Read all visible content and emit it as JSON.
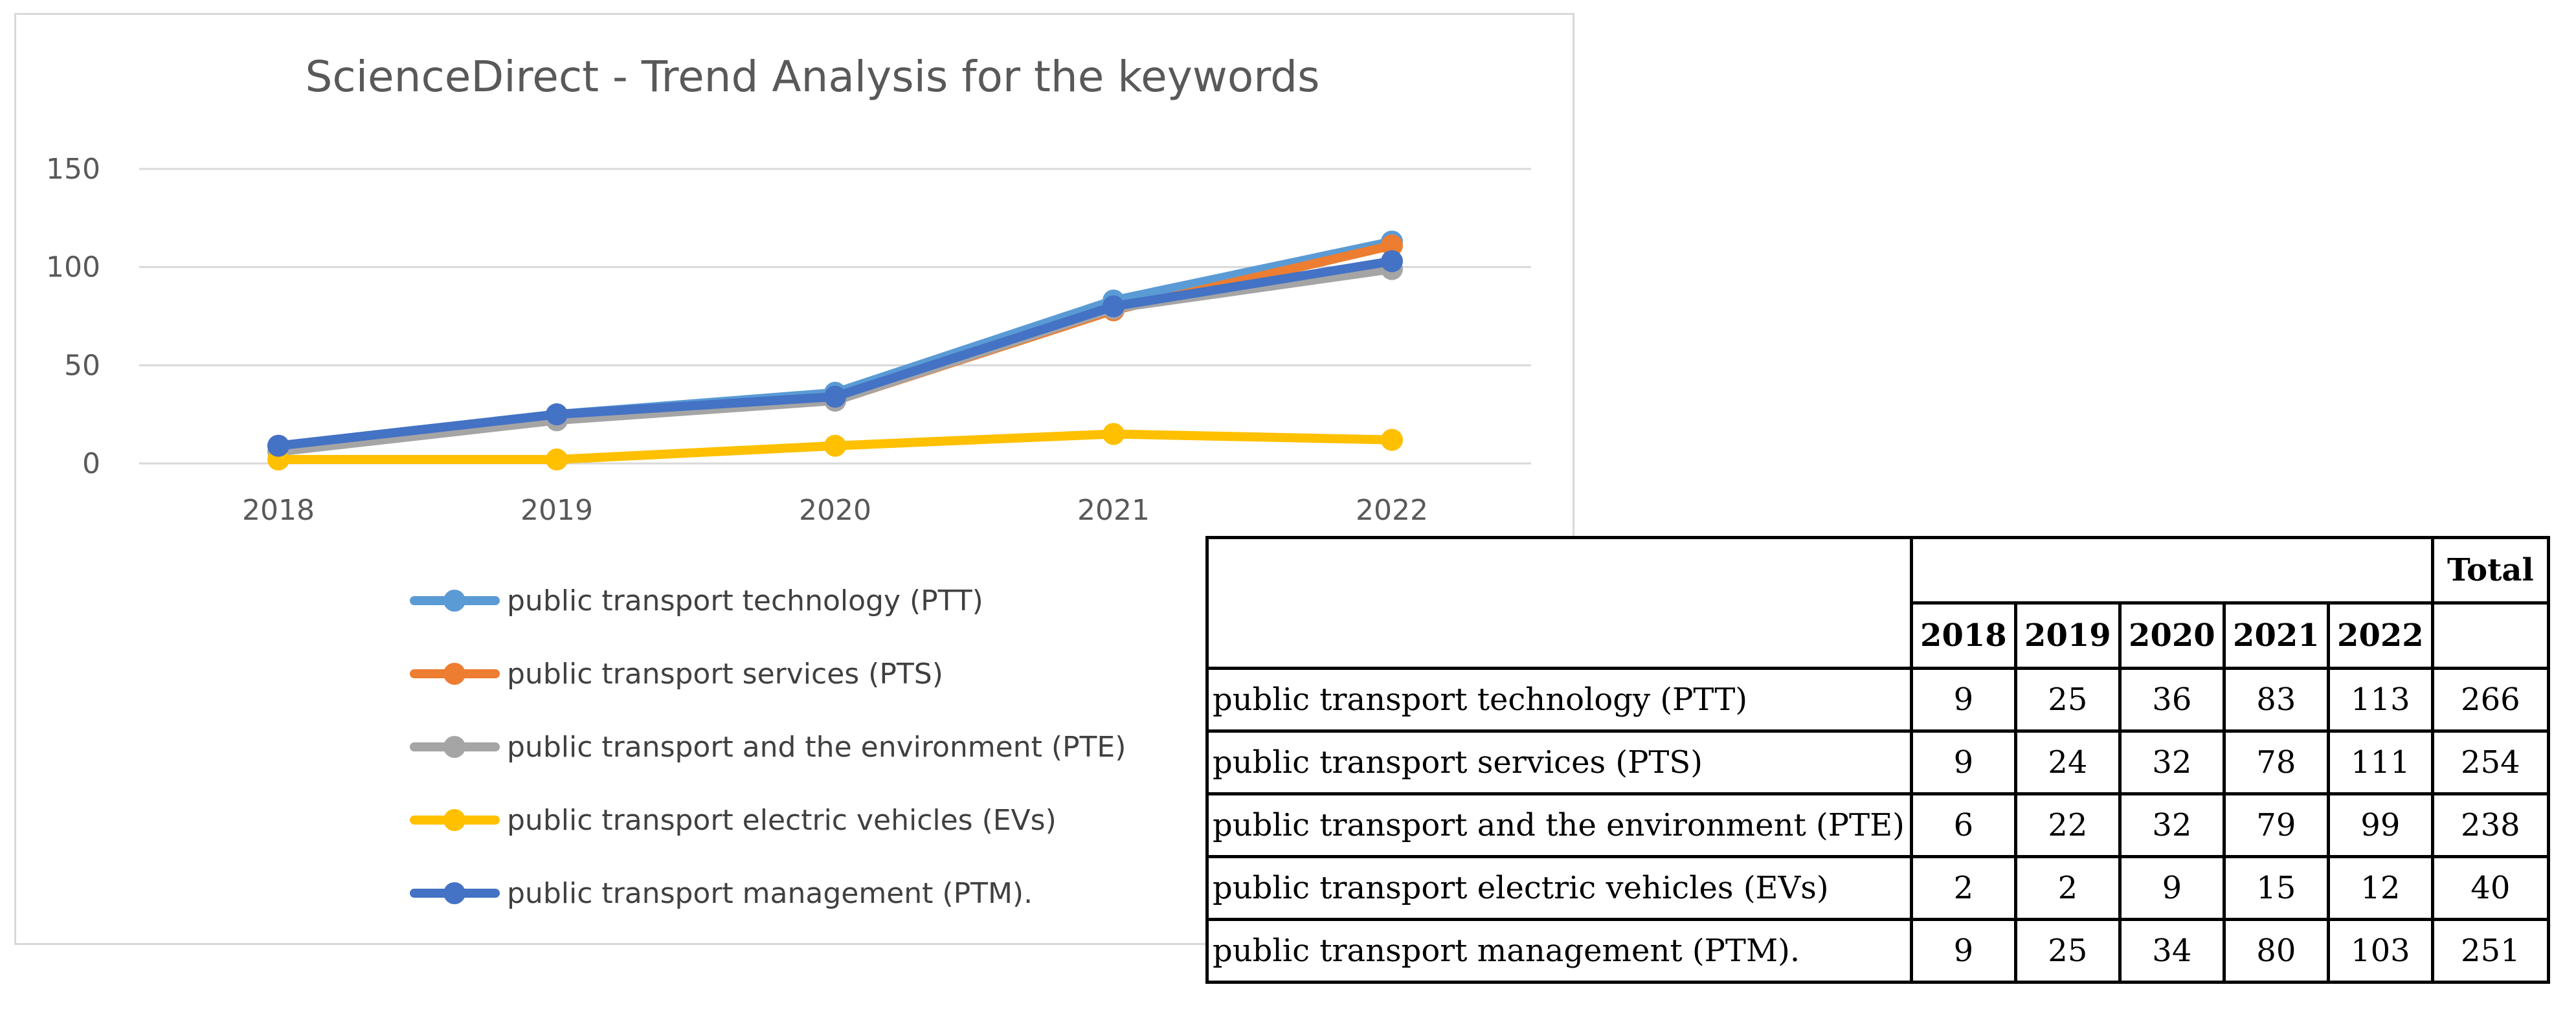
{
  "chart_data": {
    "type": "line",
    "title": "ScienceDirect - Trend Analysis for the keywords",
    "categories": [
      "2018",
      "2019",
      "2020",
      "2021",
      "2022"
    ],
    "ylim": [
      0,
      150
    ],
    "yticks": [
      "0",
      "50",
      "100",
      "150"
    ],
    "grid": true,
    "legend_position": "bottom",
    "series": [
      {
        "name": "public transport technology (PTT)",
        "color": "#5b9bd5",
        "values": [
          9,
          25,
          36,
          83,
          113
        ]
      },
      {
        "name": "public transport services (PTS)",
        "color": "#ed7d31",
        "values": [
          9,
          24,
          32,
          78,
          111
        ]
      },
      {
        "name": "public transport and the environment (PTE)",
        "color": "#a5a5a5",
        "values": [
          6,
          22,
          32,
          79,
          99
        ]
      },
      {
        "name": "public transport electric vehicles (EVs)",
        "color": "#ffc000",
        "values": [
          2,
          2,
          9,
          15,
          12
        ]
      },
      {
        "name": "public transport management (PTM).",
        "color": "#4472c4",
        "values": [
          9,
          25,
          34,
          80,
          103
        ]
      }
    ]
  },
  "table": {
    "total_header": "Total",
    "years": [
      "2018",
      "2019",
      "2020",
      "2021",
      "2022"
    ],
    "rows": [
      {
        "label": "public transport technology (PTT)",
        "values": [
          "9",
          "25",
          "36",
          "83",
          "113"
        ],
        "total": "266"
      },
      {
        "label": "public transport services (PTS)",
        "values": [
          "9",
          "24",
          "32",
          "78",
          "111"
        ],
        "total": "254"
      },
      {
        "label": "public transport and the environment (PTE)",
        "values": [
          "6",
          "22",
          "32",
          "79",
          "99"
        ],
        "total": "238"
      },
      {
        "label": "public transport electric vehicles (EVs)",
        "values": [
          "2",
          "2",
          "9",
          "15",
          "12"
        ],
        "total": "40"
      },
      {
        "label": "public transport management (PTM).",
        "values": [
          "9",
          "25",
          "34",
          "80",
          "103"
        ],
        "total": "251"
      }
    ]
  }
}
